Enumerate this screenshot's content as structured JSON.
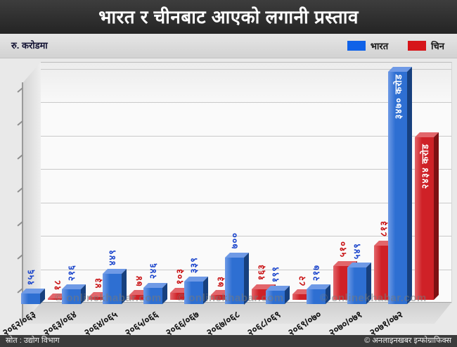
{
  "title": "भारत र चीनबाट आएको लगानी प्रस्ताव",
  "unit_label": "रु. करोडमा",
  "legend": {
    "india": "भारत",
    "china": "चिन"
  },
  "colors": {
    "india_swatch": "#0f62e8",
    "china_swatch": "#d6151a",
    "india_front": "#2e6fd2",
    "india_top": "#6f9ae6",
    "india_side": "#17407e",
    "india_label": "#1c46cc",
    "china_front": "#cf2127",
    "china_top": "#e2666b",
    "china_side": "#7e1013",
    "china_label": "#c81113",
    "title_bg": "#2f2f2f",
    "footer_bg": "#3b3b3b"
  },
  "watermark": "© onlinekhabar.com",
  "footer": {
    "source": "स्रोत : उद्योग विभाग",
    "credit": "© अनलाइनखबर इन्फोग्राफिक्स"
  },
  "chart_data": {
    "type": "bar",
    "title": "भारत र चीनबाट आएको लगानी प्रस्ताव",
    "unit": "रु. करोड",
    "categories": [
      "२०६२/०६३",
      "२०६३/०६४",
      "२०६४/०६५",
      "२०६५/०६६",
      "२०६६/०६७",
      "२०६७/०६८",
      "२०६८/०६९",
      "२०६९/०७०",
      "२०७०/०७१",
      "२०७१/०७२"
    ],
    "series": [
      {
        "name": "भारत",
        "color": "#2e6fd2",
        "values": [
          156,
          216,
          449,
          246,
          339,
          700,
          199,
          217,
          549,
          3470
        ],
        "labels": [
          "१५६",
          "२१६",
          "४४९",
          "२४६",
          "३३९",
          "७००",
          "१९९",
          "२१७",
          "५४९",
          "३४७० करोड"
        ]
      },
      {
        "name": "चिन",
        "color": "#cf2127",
        "values": [
          18,
          43,
          74,
          103,
          73,
          163,
          82,
          510,
          813,
          2434
        ],
        "labels": [
          "१८",
          "४३",
          "७४",
          "१०३",
          "७३",
          "१६३",
          "८२",
          "५१०",
          "८१३",
          "२४३४ करोड"
        ]
      }
    ],
    "ylim": [
      0,
      3700
    ],
    "gridline_step": 500,
    "grid": true,
    "legend_position": "top-right"
  }
}
